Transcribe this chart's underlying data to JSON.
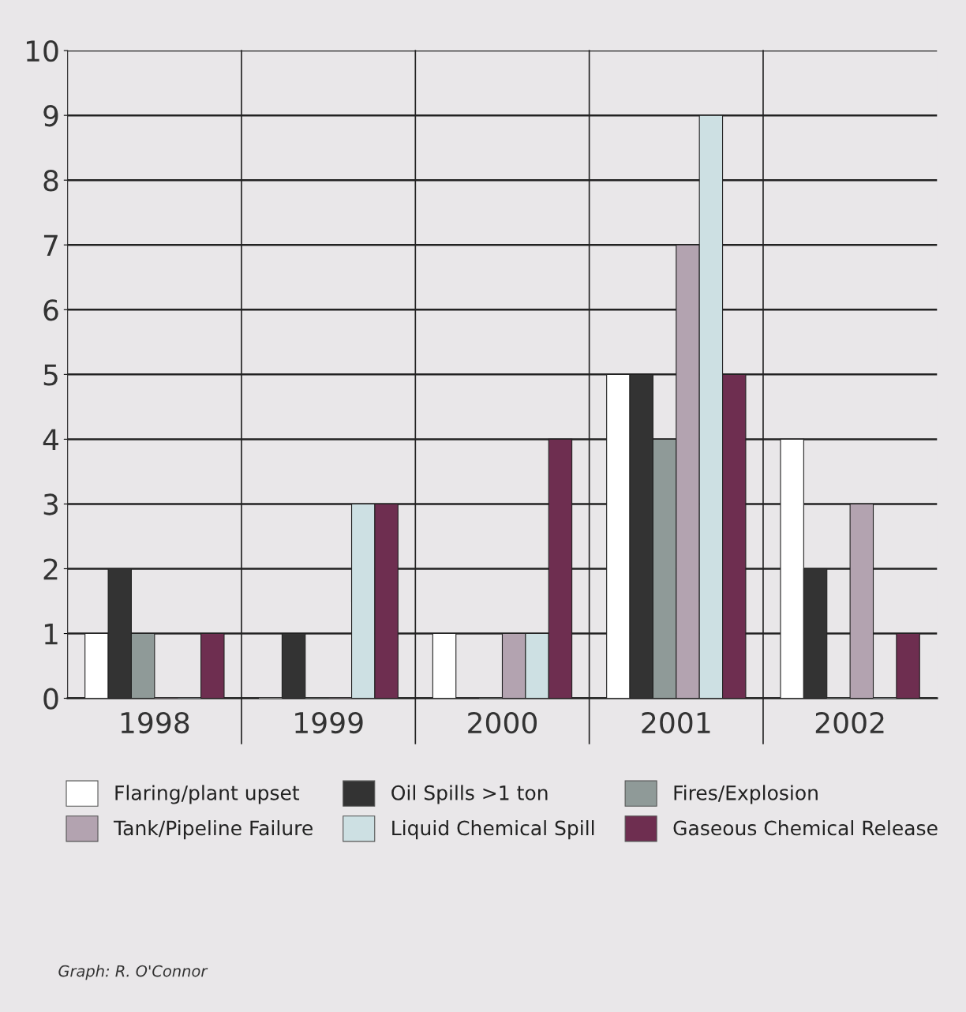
{
  "chart_data": {
    "type": "bar",
    "categories": [
      "1998",
      "1999",
      "2000",
      "2001",
      "2002"
    ],
    "series": [
      {
        "name": "Flaring/plant upset",
        "color": "#ffffff",
        "values": [
          1,
          0,
          1,
          5,
          4
        ]
      },
      {
        "name": "Oil Spills >1 ton",
        "color": "#333333",
        "values": [
          2,
          1,
          0,
          5,
          2
        ]
      },
      {
        "name": "Fires/Explosion",
        "color": "#8f9a98",
        "values": [
          1,
          0,
          0,
          4,
          0
        ]
      },
      {
        "name": "Tank/Pipeline Failure",
        "color": "#b3a3b0",
        "values": [
          0,
          0,
          1,
          7,
          3
        ]
      },
      {
        "name": "Liquid Chemical Spill",
        "color": "#cde0e3",
        "values": [
          0,
          3,
          1,
          9,
          0
        ]
      },
      {
        "name": "Gaseous Chemical Release",
        "color": "#6e2e50",
        "values": [
          1,
          3,
          4,
          5,
          1
        ]
      }
    ],
    "ylim": [
      0,
      10
    ],
    "yticks": [
      0,
      1,
      2,
      3,
      4,
      5,
      6,
      7,
      8,
      9,
      10
    ],
    "grid": true,
    "legend": "bottom",
    "annotations": [
      "Graph: R. O'Connor"
    ]
  }
}
